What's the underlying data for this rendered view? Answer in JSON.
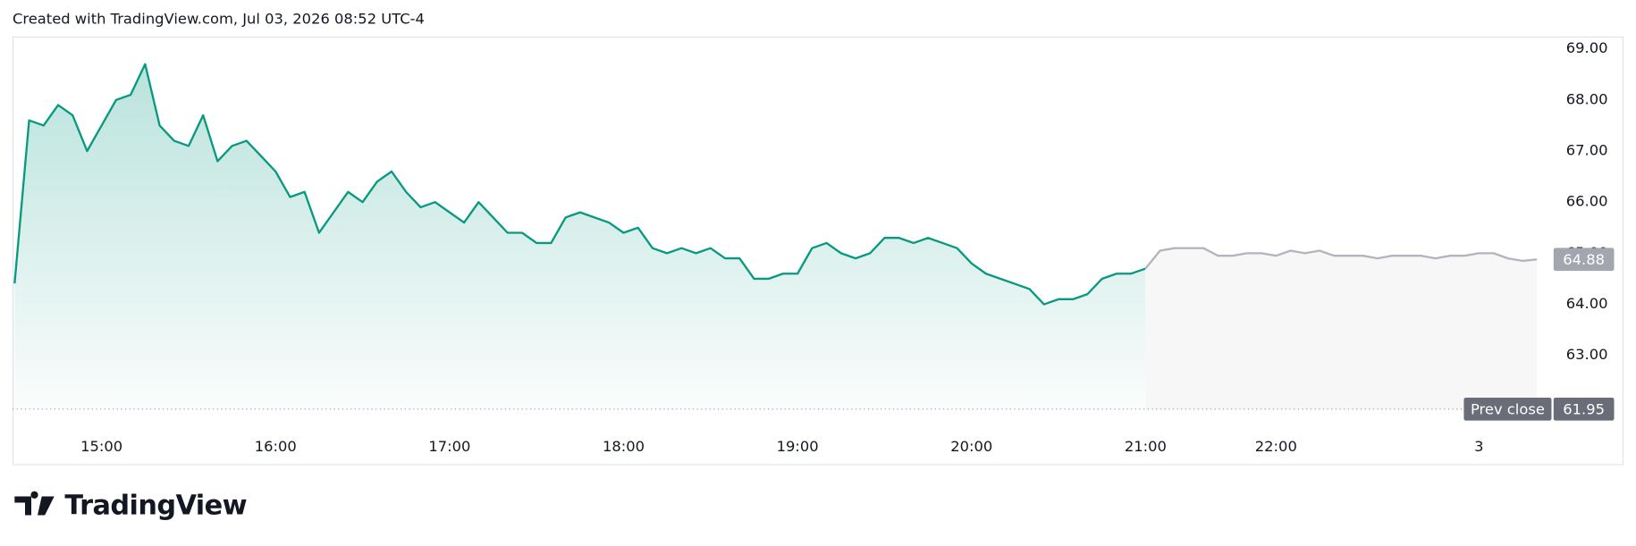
{
  "chart_data": {
    "type": "line",
    "title": "Created with TradingView.com, Jul 03, 2026 08:52 UTC-4",
    "x": [
      0,
      1,
      2,
      3,
      4,
      5,
      6,
      7,
      8,
      9,
      10,
      11,
      12,
      13,
      14,
      15,
      16,
      17,
      18,
      19,
      20,
      21,
      22,
      23,
      24,
      25,
      26,
      27,
      28,
      29,
      30,
      31,
      32,
      33,
      34,
      35,
      36,
      37,
      38,
      39,
      40,
      41,
      42,
      43,
      44,
      45,
      46,
      47,
      48,
      49,
      50,
      51,
      52,
      53,
      54,
      55,
      56,
      57,
      58,
      59,
      60,
      61,
      62,
      63,
      64,
      65,
      66,
      67,
      68,
      69,
      70,
      71,
      72,
      73,
      74,
      75,
      76,
      77,
      78,
      79,
      80,
      81,
      82,
      83,
      84,
      85,
      86,
      87,
      88,
      89,
      90,
      91,
      92,
      93,
      94,
      95,
      96,
      97,
      98,
      99,
      100,
      101,
      102,
      103,
      104,
      105
    ],
    "series": [
      {
        "color": "#089981",
        "values": [
          64.41,
          67.6,
          67.5,
          67.9,
          67.7,
          67.0,
          67.5,
          68.0,
          68.1,
          68.7,
          67.5,
          67.2,
          67.1,
          67.7,
          66.8,
          67.1,
          67.2,
          66.9,
          66.6,
          66.1,
          66.2,
          65.4,
          65.8,
          66.2,
          66.0,
          66.4,
          66.6,
          66.2,
          65.9,
          66.0,
          65.8,
          65.6,
          66.0,
          65.7,
          65.4,
          65.4,
          65.2,
          65.2,
          65.7,
          65.8,
          65.7,
          65.6,
          65.4,
          65.5,
          65.1,
          65.0,
          65.1,
          65.0,
          65.1,
          64.9,
          64.9,
          64.5,
          64.5,
          64.6,
          64.6,
          65.1,
          65.2,
          65.0,
          64.9,
          65.0,
          65.3,
          65.3,
          65.2,
          65.3,
          65.2,
          65.1,
          64.8,
          64.6,
          64.5,
          64.4,
          64.3,
          64.0,
          64.1,
          64.1,
          64.2,
          64.5,
          64.6,
          64.6,
          64.7,
          null,
          null,
          null,
          null,
          null,
          null,
          null,
          null,
          null,
          null,
          null,
          null,
          null,
          null,
          null,
          null,
          null,
          null,
          null,
          null,
          null,
          null,
          null,
          null,
          null,
          null,
          null
        ]
      },
      {
        "color": "#b2b5be",
        "values": [
          null,
          null,
          null,
          null,
          null,
          null,
          null,
          null,
          null,
          null,
          null,
          null,
          null,
          null,
          null,
          null,
          null,
          null,
          null,
          null,
          null,
          null,
          null,
          null,
          null,
          null,
          null,
          null,
          null,
          null,
          null,
          null,
          null,
          null,
          null,
          null,
          null,
          null,
          null,
          null,
          null,
          null,
          null,
          null,
          null,
          null,
          null,
          null,
          null,
          null,
          null,
          null,
          null,
          null,
          null,
          null,
          null,
          null,
          null,
          null,
          null,
          null,
          null,
          null,
          null,
          null,
          null,
          null,
          null,
          null,
          null,
          null,
          null,
          null,
          null,
          null,
          null,
          null,
          64.7,
          65.05,
          65.1,
          65.1,
          65.1,
          64.95,
          64.95,
          65.0,
          65.0,
          64.95,
          65.05,
          65.0,
          65.05,
          64.95,
          64.95,
          64.95,
          64.9,
          64.95,
          64.95,
          64.95,
          64.9,
          64.95,
          64.95,
          65.0,
          65.0,
          64.9,
          64.85,
          64.88
        ]
      }
    ],
    "xlim": [
      0,
      106
    ],
    "xticks": [
      {
        "value": 6,
        "label": "15:00"
      },
      {
        "value": 18,
        "label": "16:00"
      },
      {
        "value": 30,
        "label": "17:00"
      },
      {
        "value": 42,
        "label": "18:00"
      },
      {
        "value": 54,
        "label": "19:00"
      },
      {
        "value": 66,
        "label": "20:00"
      },
      {
        "value": 78,
        "label": "21:00"
      },
      {
        "value": 87,
        "label": "22:00"
      },
      {
        "value": 101,
        "label": "3"
      }
    ],
    "ylim": [
      61.69,
      69.24
    ],
    "yticks": [
      {
        "value": 63,
        "label": "63.00"
      },
      {
        "value": 64,
        "label": "64.00"
      },
      {
        "value": 65,
        "label": "65.00"
      },
      {
        "value": 66,
        "label": "66.00"
      },
      {
        "value": 67,
        "label": "67.00"
      },
      {
        "value": 68,
        "label": "68.00"
      },
      {
        "value": 69,
        "label": "69.00"
      }
    ],
    "last_value": 64.88,
    "prev_close_label": "Prev close",
    "prev_close": 61.95
  },
  "logo_text": "TradingView"
}
